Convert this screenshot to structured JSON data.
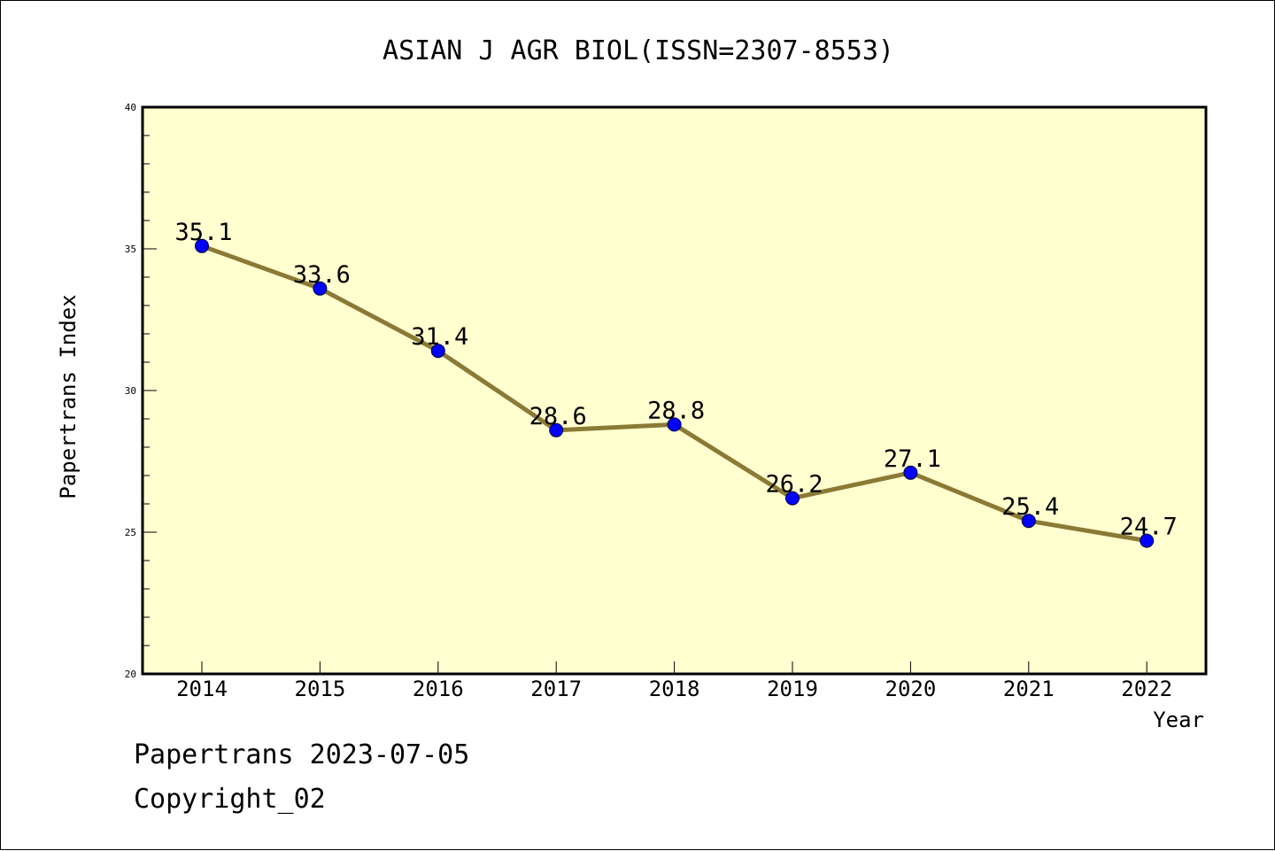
{
  "chart_data": {
    "type": "line",
    "title": "ASIAN J AGR BIOL(ISSN=2307-8553)",
    "xlabel": "Year",
    "ylabel": "Papertrans Index",
    "categories": [
      "2014",
      "2015",
      "2016",
      "2017",
      "2018",
      "2019",
      "2020",
      "2021",
      "2022"
    ],
    "series": [
      {
        "values": [
          35.1,
          33.6,
          31.4,
          28.6,
          28.8,
          26.2,
          27.1,
          25.4,
          24.7
        ],
        "labels": [
          "35.1",
          "33.6",
          "31.4",
          "28.6",
          "28.8",
          "26.2",
          "27.1",
          "25.4",
          "24.7"
        ]
      }
    ],
    "ylim": [
      20,
      40
    ],
    "yticks": [
      "20",
      "25",
      "30",
      "35",
      "40"
    ],
    "grid": false,
    "colors": {
      "plot_background": "#ffffd0",
      "line": "#8b7a35",
      "marker": "#0000ff"
    }
  },
  "footer": {
    "line1": "Papertrans 2023-07-05",
    "line2": "Copyright_02"
  }
}
